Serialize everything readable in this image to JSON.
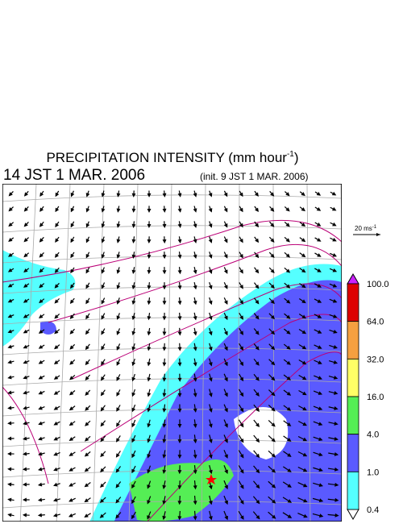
{
  "header": {
    "title": "PRECIPITATION INTENSITY (mm hour",
    "title_exponent": "-1",
    "title_close": ")",
    "valid_time": "14 JST 1 MAR. 2006",
    "init_time": "(init. 9 JST 1 MAR. 2006)"
  },
  "reference_vector": {
    "label": "20 ms",
    "exponent": "-1"
  },
  "colorbar": {
    "levels": [
      "100.0",
      "64.0",
      "32.0",
      "16.0",
      "4.0",
      "1.0",
      "0.4"
    ],
    "colors": [
      "#dd0000",
      "#f5a040",
      "#ffff66",
      "#55ee55",
      "#5a5aff",
      "#55ffff"
    ],
    "over_color": "#cc22ff",
    "under_color": "#ffffff"
  }
}
